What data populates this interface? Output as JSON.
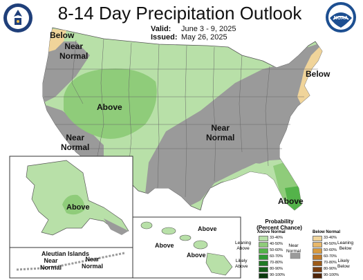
{
  "title": "8-14 Day Precipitation Outlook",
  "valid_label": "Valid:",
  "valid_value": "June 3 - 9, 2025",
  "issued_label": "Issued:",
  "issued_value": "May 26, 2025",
  "logos": {
    "left": "commerce-seal",
    "right_text": "NOAA"
  },
  "colors": {
    "above_33_40": "#b8e0a8",
    "above_40_50": "#8fcc7a",
    "above_50_60": "#54b34a",
    "below_33_40": "#f0d49a",
    "near_normal": "#9a9a9a",
    "background_land": "#ffffff",
    "water": "#ffffff"
  },
  "map_labels": {
    "nw_below": "Below",
    "nw_near": "Near\nNormal",
    "rockies_above": "Above",
    "sw_near": "Near\nNormal",
    "east_near": "Near\nNormal",
    "ne_below": "Below",
    "fl_above": "Above",
    "ak_above": "Above",
    "hi_above_1": "Above",
    "hi_above_2": "Above",
    "hi_above_3": "Above",
    "aleutian_title": "Aleutian Islands",
    "aleutian_near_1": "Near\nNormal",
    "aleutian_near_2": "Near\nNormal"
  },
  "legend": {
    "title": "Probability\n(Percent Chance)",
    "above_header": "Above Normal",
    "below_header": "Below Normal",
    "near_label": "Near\nNormal",
    "leaning_above": "Leaning\nAbove",
    "likely_above": "Likely\nAbove",
    "leaning_below": "Leaning\nBelow",
    "likely_below": "Likely\nBelow",
    "above_rows": [
      {
        "range": "33-40%",
        "color": "#b8e0a8"
      },
      {
        "range": "40-50%",
        "color": "#8fcc7a"
      },
      {
        "range": "50-60%",
        "color": "#54b34a"
      },
      {
        "range": "60-70%",
        "color": "#2f9a34"
      },
      {
        "range": "70-80%",
        "color": "#1f7a24"
      },
      {
        "range": "80-90%",
        "color": "#135c18"
      },
      {
        "range": "90-100%",
        "color": "#0a3a0d"
      }
    ],
    "below_rows": [
      {
        "range": "33-40%",
        "color": "#f0d49a"
      },
      {
        "range": "40-50%",
        "color": "#e8b86a"
      },
      {
        "range": "50-60%",
        "color": "#d89a3e"
      },
      {
        "range": "60-70%",
        "color": "#c07a28"
      },
      {
        "range": "70-80%",
        "color": "#9c5a18"
      },
      {
        "range": "80-90%",
        "color": "#7a3e10"
      },
      {
        "range": "90-100%",
        "color": "#4e2408"
      }
    ]
  }
}
